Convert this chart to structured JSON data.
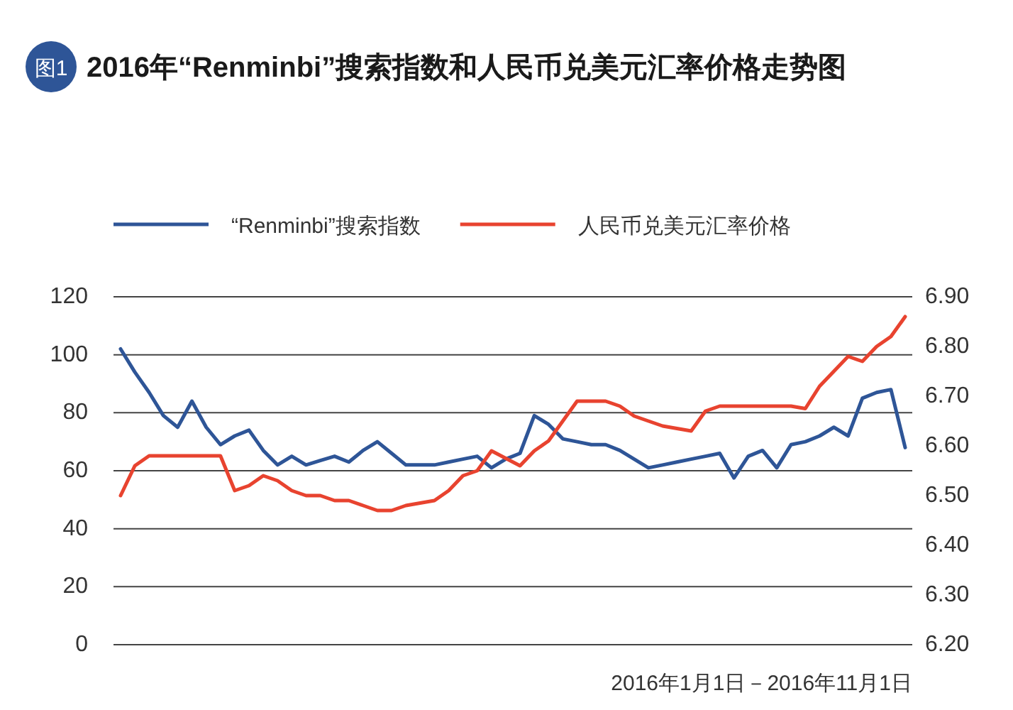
{
  "chart_data": {
    "type": "line",
    "title": "2016年“Renminbi”搜索指数和人民币兑美元汇率价格走势图",
    "annotations": [
      "图1",
      "2016年1月1日－2016年11月1日"
    ],
    "categories": [
      null,
      null,
      null,
      null,
      null,
      null,
      null,
      null,
      null,
      null,
      null,
      null,
      null,
      null,
      null,
      null,
      null,
      null,
      null,
      null,
      null,
      null,
      null,
      null,
      null,
      null,
      null,
      null,
      null,
      null,
      null,
      null,
      null,
      null,
      null,
      null,
      null,
      null,
      null,
      null,
      null,
      null,
      null,
      null,
      null,
      null,
      null,
      null,
      null,
      null,
      null,
      null,
      null,
      null,
      null,
      null
    ],
    "ylim": [
      0,
      120
    ],
    "yticks": [
      0,
      20,
      40,
      60,
      80,
      100,
      120
    ],
    "y2lim": [
      6.2,
      6.9
    ],
    "y2ticks": [
      {
        "value": 6.2,
        "label": "6.20"
      },
      {
        "value": 6.3,
        "label": "6.30"
      },
      {
        "value": 6.4,
        "label": "6.40"
      },
      {
        "value": 6.5,
        "label": "6.50"
      },
      {
        "value": 6.6,
        "label": "6.60"
      },
      {
        "value": 6.7,
        "label": "6.70"
      },
      {
        "value": 6.8,
        "label": "6.80"
      },
      {
        "value": 6.9,
        "label": "6.90"
      }
    ],
    "grid": "y",
    "legend": "top",
    "line_style": "solid",
    "series": [
      {
        "name": "“Renminbi”搜索指数",
        "color": "#2e5597",
        "values": [
          102,
          94,
          87,
          79,
          75,
          84,
          75,
          69,
          72,
          74,
          67,
          62,
          65,
          62,
          63.5,
          65,
          63,
          67,
          70,
          66,
          62,
          62,
          62,
          63,
          64,
          65,
          61,
          64,
          66,
          79,
          76,
          71,
          70,
          69,
          69,
          67,
          64,
          61,
          62,
          63,
          64,
          65,
          66,
          57.5,
          65,
          67,
          61,
          69,
          70,
          72,
          75,
          72,
          85,
          87,
          88,
          68
        ]
      },
      {
        "name": "人民币兑美元汇率价格",
        "color": "#e8432f",
        "axis": "y2",
        "values": [
          6.5,
          6.56,
          6.58,
          6.58,
          6.58,
          6.58,
          6.58,
          6.58,
          6.51,
          6.52,
          6.54,
          6.53,
          6.51,
          6.5,
          6.5,
          6.49,
          6.49,
          6.48,
          6.47,
          6.47,
          6.48,
          6.485,
          6.49,
          6.51,
          6.54,
          6.55,
          6.59,
          6.575,
          6.56,
          6.59,
          6.61,
          6.65,
          6.69,
          6.69,
          6.69,
          6.68,
          6.66,
          6.65,
          6.64,
          6.635,
          6.63,
          6.67,
          6.68,
          6.68,
          6.68,
          6.68,
          6.68,
          6.68,
          6.675,
          6.72,
          6.75,
          6.78,
          6.77,
          6.8,
          6.82,
          6.86
        ]
      }
    ]
  }
}
